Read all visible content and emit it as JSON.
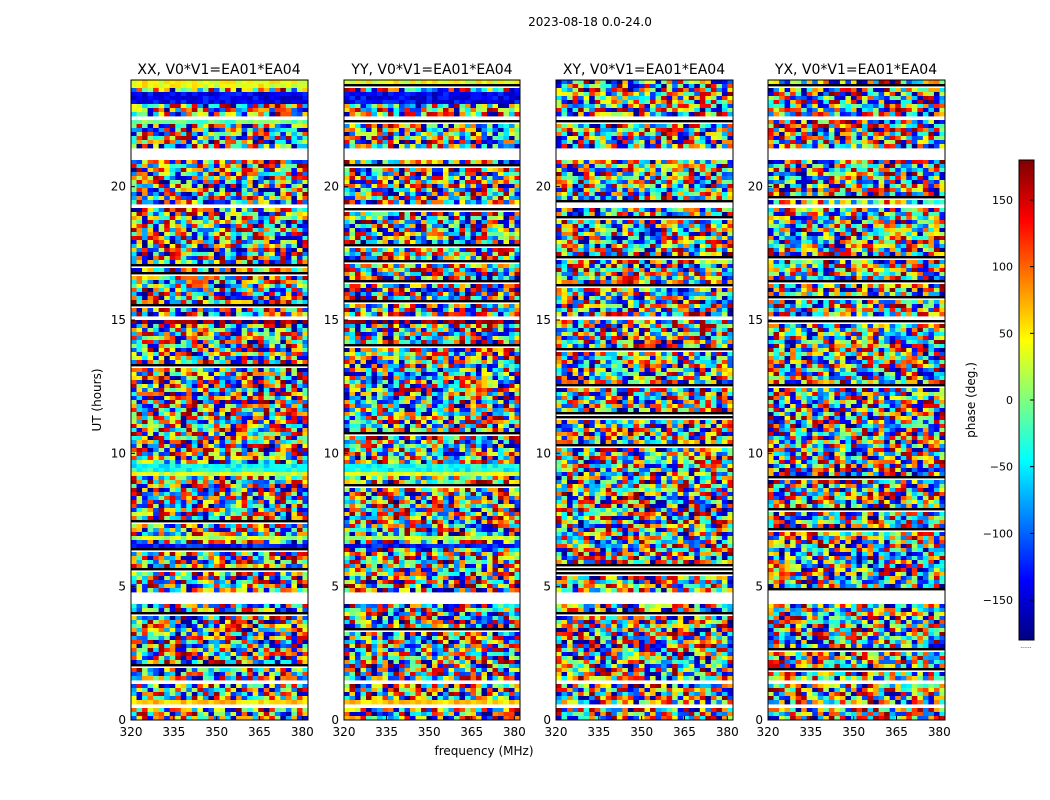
{
  "chart_data": {
    "type": "heatmap",
    "suptitle": "2023-08-18 0.0-24.0",
    "xlabel": "frequency (MHz)",
    "ylabel": "UT (hours)",
    "xlim": [
      320,
      382
    ],
    "ylim": [
      0,
      24
    ],
    "xticks": [
      320,
      335,
      350,
      365,
      380
    ],
    "yticks": [
      0,
      5,
      10,
      15,
      20
    ],
    "colorbar": {
      "label": "phase (deg.)",
      "range": [
        -180,
        180
      ],
      "ticks": [
        -150,
        -100,
        -50,
        0,
        50,
        100,
        150
      ],
      "colormap": "jet",
      "stops": [
        "#00007f",
        "#0000ff",
        "#007fff",
        "#00ffff",
        "#7fff7f",
        "#ffff00",
        "#ff7f00",
        "#ff0000",
        "#7f0000"
      ],
      "extra_label": "......"
    },
    "panels": [
      {
        "title": "XX, V0*V1=EA01*EA04",
        "polarization": "XX",
        "coherent": true
      },
      {
        "title": "YY, V0*V1=EA01*EA04",
        "polarization": "YY",
        "coherent": true
      },
      {
        "title": "XY, V0*V1=EA01*EA04",
        "polarization": "XY",
        "coherent": false
      },
      {
        "title": "YX, V0*V1=EA01*EA04",
        "polarization": "YX",
        "coherent": false
      }
    ],
    "flagged_ut_ranges": [
      [
        0.45,
        0.55
      ],
      [
        1.3,
        1.45
      ],
      [
        4.35,
        4.85
      ],
      [
        8.95,
        9.05
      ],
      [
        11.95,
        12.05
      ],
      [
        15.05,
        15.15
      ],
      [
        19.2,
        19.3
      ],
      [
        21.0,
        21.5
      ],
      [
        22.0,
        22.1
      ],
      [
        22.5,
        22.6
      ]
    ],
    "coherent_bands": [
      {
        "ut": [
          23.1,
          23.6
        ],
        "phase": -140
      },
      {
        "ut": [
          23.7,
          23.95
        ],
        "phase": 40
      },
      {
        "ut": [
          22.4,
          22.5
        ],
        "phase": -10
      },
      {
        "ut": [
          14.8,
          14.95
        ],
        "phase": 170
      },
      {
        "ut": [
          9.1,
          9.35
        ],
        "phase": 30
      },
      {
        "ut": [
          9.35,
          9.55
        ],
        "phase": -40
      },
      {
        "ut": [
          6.4,
          6.6
        ],
        "phase": -130
      },
      {
        "ut": [
          6.7,
          6.85
        ],
        "phase": 20
      },
      {
        "ut": [
          0.5,
          0.7
        ],
        "phase": 60
      }
    ]
  }
}
